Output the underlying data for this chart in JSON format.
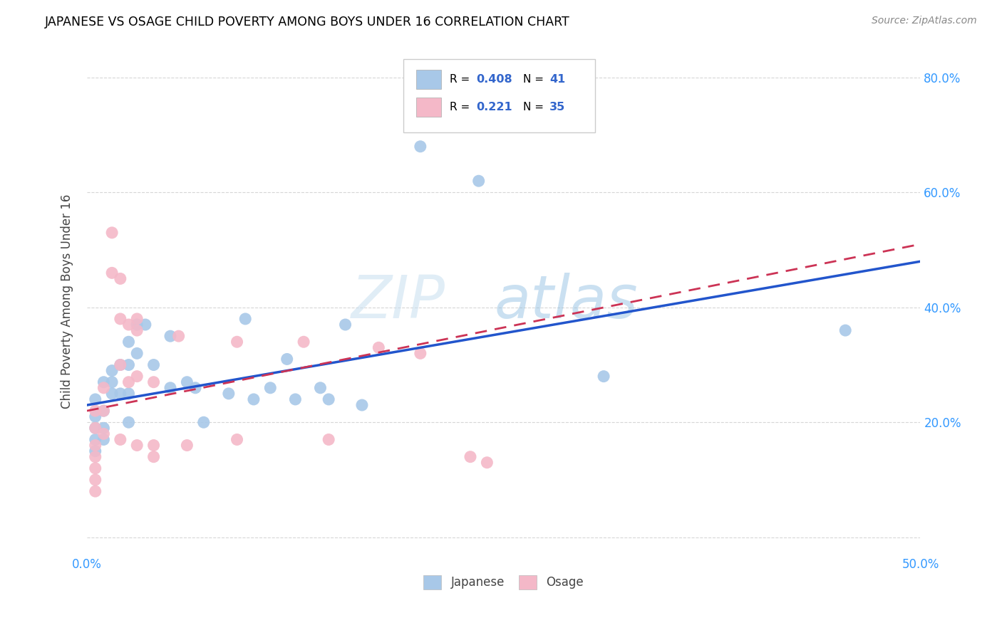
{
  "title": "JAPANESE VS OSAGE CHILD POVERTY AMONG BOYS UNDER 16 CORRELATION CHART",
  "source": "Source: ZipAtlas.com",
  "ylabel": "Child Poverty Among Boys Under 16",
  "x_min": 0.0,
  "x_max": 0.5,
  "y_min": -0.03,
  "y_max": 0.85,
  "x_ticks": [
    0.0,
    0.1,
    0.2,
    0.3,
    0.4,
    0.5
  ],
  "x_tick_labels": [
    "0.0%",
    "",
    "",
    "",
    "",
    "50.0%"
  ],
  "y_ticks": [
    0.0,
    0.2,
    0.4,
    0.6,
    0.8
  ],
  "y_tick_labels": [
    "",
    "20.0%",
    "40.0%",
    "60.0%",
    "80.0%"
  ],
  "legend_japanese": "Japanese",
  "legend_osage": "Osage",
  "r_japanese": "0.408",
  "n_japanese": "41",
  "r_osage": "0.221",
  "n_osage": "35",
  "japanese_color": "#a8c8e8",
  "osage_color": "#f4b8c8",
  "trendline_japanese_color": "#2255cc",
  "trendline_osage_color": "#cc3355",
  "japanese_points": [
    [
      0.005,
      0.24
    ],
    [
      0.005,
      0.21
    ],
    [
      0.005,
      0.19
    ],
    [
      0.005,
      0.17
    ],
    [
      0.005,
      0.15
    ],
    [
      0.01,
      0.27
    ],
    [
      0.01,
      0.22
    ],
    [
      0.01,
      0.19
    ],
    [
      0.01,
      0.17
    ],
    [
      0.015,
      0.29
    ],
    [
      0.015,
      0.27
    ],
    [
      0.015,
      0.25
    ],
    [
      0.02,
      0.3
    ],
    [
      0.02,
      0.25
    ],
    [
      0.025,
      0.34
    ],
    [
      0.025,
      0.3
    ],
    [
      0.025,
      0.25
    ],
    [
      0.025,
      0.2
    ],
    [
      0.03,
      0.37
    ],
    [
      0.03,
      0.32
    ],
    [
      0.035,
      0.37
    ],
    [
      0.04,
      0.3
    ],
    [
      0.05,
      0.35
    ],
    [
      0.05,
      0.26
    ],
    [
      0.06,
      0.27
    ],
    [
      0.065,
      0.26
    ],
    [
      0.07,
      0.2
    ],
    [
      0.085,
      0.25
    ],
    [
      0.095,
      0.38
    ],
    [
      0.1,
      0.24
    ],
    [
      0.11,
      0.26
    ],
    [
      0.12,
      0.31
    ],
    [
      0.125,
      0.24
    ],
    [
      0.14,
      0.26
    ],
    [
      0.145,
      0.24
    ],
    [
      0.155,
      0.37
    ],
    [
      0.165,
      0.23
    ],
    [
      0.2,
      0.68
    ],
    [
      0.235,
      0.62
    ],
    [
      0.31,
      0.28
    ],
    [
      0.455,
      0.36
    ]
  ],
  "osage_points": [
    [
      0.005,
      0.22
    ],
    [
      0.005,
      0.19
    ],
    [
      0.005,
      0.16
    ],
    [
      0.005,
      0.14
    ],
    [
      0.005,
      0.12
    ],
    [
      0.005,
      0.1
    ],
    [
      0.005,
      0.08
    ],
    [
      0.01,
      0.26
    ],
    [
      0.01,
      0.22
    ],
    [
      0.01,
      0.18
    ],
    [
      0.015,
      0.53
    ],
    [
      0.015,
      0.46
    ],
    [
      0.02,
      0.45
    ],
    [
      0.02,
      0.38
    ],
    [
      0.02,
      0.3
    ],
    [
      0.02,
      0.17
    ],
    [
      0.025,
      0.37
    ],
    [
      0.025,
      0.27
    ],
    [
      0.03,
      0.38
    ],
    [
      0.03,
      0.36
    ],
    [
      0.03,
      0.28
    ],
    [
      0.03,
      0.16
    ],
    [
      0.04,
      0.27
    ],
    [
      0.04,
      0.16
    ],
    [
      0.04,
      0.14
    ],
    [
      0.055,
      0.35
    ],
    [
      0.06,
      0.16
    ],
    [
      0.09,
      0.34
    ],
    [
      0.09,
      0.17
    ],
    [
      0.13,
      0.34
    ],
    [
      0.145,
      0.17
    ],
    [
      0.175,
      0.33
    ],
    [
      0.2,
      0.32
    ],
    [
      0.23,
      0.14
    ],
    [
      0.24,
      0.13
    ]
  ]
}
